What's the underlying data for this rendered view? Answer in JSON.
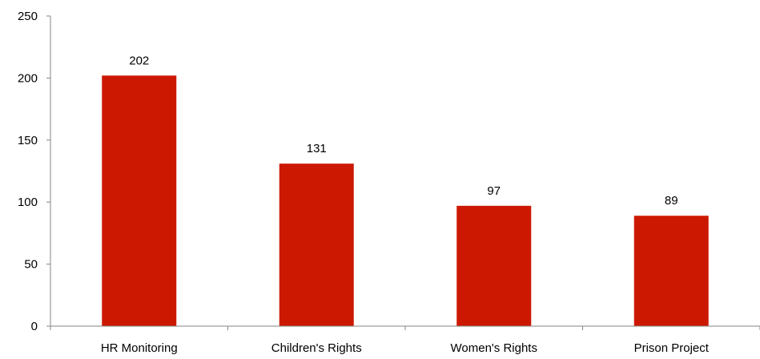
{
  "chart_data": {
    "type": "bar",
    "categories": [
      "HR Monitoring",
      "Children's Rights",
      "Women's Rights",
      "Prison Project"
    ],
    "values": [
      202,
      131,
      97,
      89
    ],
    "data_labels": [
      "202",
      "131",
      "97",
      "89"
    ],
    "title": "",
    "xlabel": "",
    "ylabel": "",
    "ylim": [
      0,
      250
    ],
    "yticks": [
      0,
      50,
      100,
      150,
      200,
      250
    ],
    "grid": false,
    "legend": "none",
    "bar_color": "#CC1800"
  }
}
